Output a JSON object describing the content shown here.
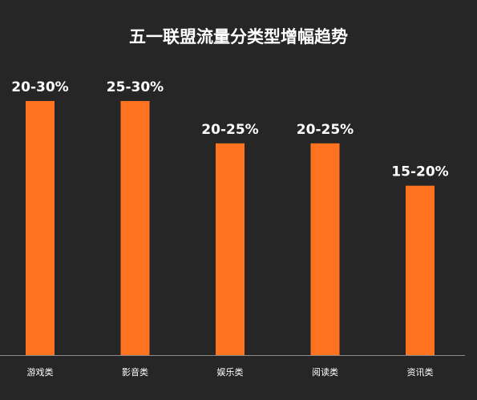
{
  "chart_data": {
    "type": "bar",
    "title": "五一联盟流量分类型增幅趋势",
    "xlabel": "",
    "ylabel": "",
    "categories": [
      "游戏类",
      "影音类",
      "娱乐类",
      "阅读类",
      "资讯类"
    ],
    "value_labels": [
      "20-30%",
      "25-30%",
      "20-25%",
      "20-25%",
      "15-20%"
    ],
    "ranges": [
      [
        20,
        30
      ],
      [
        25,
        30
      ],
      [
        20,
        25
      ],
      [
        20,
        25
      ],
      [
        15,
        20
      ]
    ],
    "values": [
      30,
      30,
      25,
      25,
      20
    ],
    "unit": "%",
    "ylim": [
      0,
      30
    ],
    "grid": false,
    "legend": "none",
    "colors": {
      "background": "#262626",
      "bar": "#ff7320",
      "axis": "#8c8c8c",
      "text": "#ffffff"
    }
  }
}
